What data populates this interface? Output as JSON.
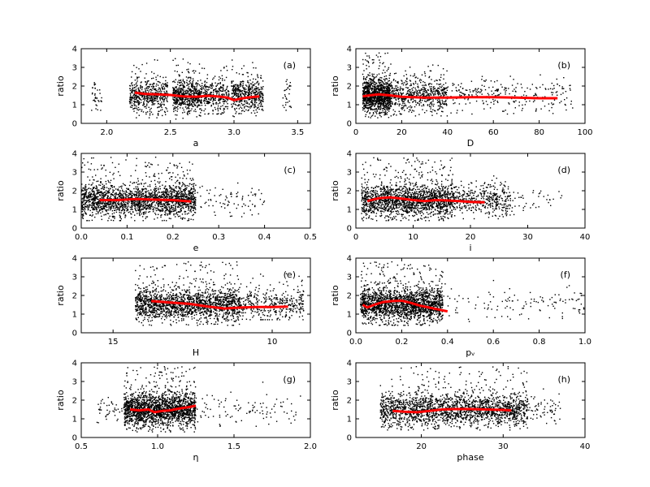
{
  "chart_data": [
    {
      "panel": "(a)",
      "type": "scatter",
      "xlabel": "a",
      "ylabel": "ratio",
      "xlim": [
        1.8,
        3.6
      ],
      "ylim": [
        0,
        4
      ],
      "x_reversed": false,
      "xticks": [
        2.0,
        2.5,
        3.0,
        3.5
      ],
      "xtick_labels": [
        "2.0",
        "2.5",
        "3.0",
        "3.5"
      ],
      "yticks": [
        0,
        1,
        2,
        3,
        4
      ],
      "ytick_labels": [
        "0",
        "1",
        "2",
        "3",
        "4"
      ],
      "clusters": [
        {
          "x": [
            1.88,
            1.96
          ],
          "y": [
            0.7,
            2.6
          ],
          "n": 35
        },
        {
          "x": [
            2.18,
            2.48
          ],
          "y": [
            0.3,
            3.5
          ],
          "n": 500
        },
        {
          "x": [
            2.52,
            2.75
          ],
          "y": [
            0.2,
            3.6
          ],
          "n": 600
        },
        {
          "x": [
            2.76,
            2.96
          ],
          "y": [
            0.5,
            3.2
          ],
          "n": 300
        },
        {
          "x": [
            2.98,
            3.23
          ],
          "y": [
            0.3,
            3.4
          ],
          "n": 450
        },
        {
          "x": [
            3.38,
            3.45
          ],
          "y": [
            0.7,
            2.4
          ],
          "n": 30
        }
      ],
      "trend": {
        "x": [
          2.22,
          2.3,
          2.4,
          2.5,
          2.6,
          2.7,
          2.8,
          2.9,
          2.95,
          3.0,
          3.05,
          3.1,
          3.2
        ],
        "y": [
          1.65,
          1.58,
          1.55,
          1.52,
          1.45,
          1.42,
          1.48,
          1.42,
          1.38,
          1.25,
          1.32,
          1.38,
          1.45
        ]
      }
    },
    {
      "panel": "(b)",
      "type": "scatter",
      "xlabel": "D",
      "ylabel": "ratio",
      "xlim": [
        0,
        100
      ],
      "ylim": [
        0,
        4
      ],
      "x_reversed": false,
      "xticks": [
        0,
        20,
        40,
        60,
        80,
        100
      ],
      "xtick_labels": [
        "0",
        "20",
        "40",
        "60",
        "80",
        "100"
      ],
      "yticks": [
        0,
        1,
        2,
        3,
        4
      ],
      "ytick_labels": [
        "0",
        "1",
        "2",
        "3",
        "4"
      ],
      "clusters": [
        {
          "x": [
            3,
            15
          ],
          "y": [
            0.3,
            3.8
          ],
          "n": 1100
        },
        {
          "x": [
            15,
            40
          ],
          "y": [
            0.4,
            3.2
          ],
          "n": 600
        },
        {
          "x": [
            40,
            95
          ],
          "y": [
            0.5,
            2.6
          ],
          "n": 250
        }
      ],
      "trend": {
        "x": [
          3,
          6,
          10,
          15,
          20,
          30,
          40,
          50,
          60,
          70,
          80,
          88
        ],
        "y": [
          1.45,
          1.5,
          1.55,
          1.5,
          1.42,
          1.38,
          1.38,
          1.4,
          1.4,
          1.38,
          1.35,
          1.35
        ]
      }
    },
    {
      "panel": "(c)",
      "type": "scatter",
      "xlabel": "e",
      "ylabel": "ratio",
      "xlim": [
        0.0,
        0.5
      ],
      "ylim": [
        0,
        4
      ],
      "x_reversed": false,
      "xticks": [
        0.0,
        0.1,
        0.2,
        0.3,
        0.4,
        0.5
      ],
      "xtick_labels": [
        "0.0",
        "0.1",
        "0.2",
        "0.3",
        "0.4",
        "0.5"
      ],
      "yticks": [
        0,
        1,
        2,
        3,
        4
      ],
      "ytick_labels": [
        "0",
        "1",
        "2",
        "3",
        "4"
      ],
      "clusters": [
        {
          "x": [
            0.0,
            0.25
          ],
          "y": [
            0.4,
            3.8
          ],
          "n": 2000
        },
        {
          "x": [
            0.25,
            0.4
          ],
          "y": [
            0.6,
            2.6
          ],
          "n": 80
        }
      ],
      "trend": {
        "x": [
          0.04,
          0.08,
          0.12,
          0.16,
          0.2,
          0.24
        ],
        "y": [
          1.5,
          1.5,
          1.55,
          1.52,
          1.5,
          1.42
        ]
      }
    },
    {
      "panel": "(d)",
      "type": "scatter",
      "xlabel": "i",
      "ylabel": "ratio",
      "xlim": [
        0,
        40
      ],
      "ylim": [
        0,
        4
      ],
      "x_reversed": false,
      "xticks": [
        0,
        10,
        20,
        30,
        40
      ],
      "xtick_labels": [
        "0",
        "10",
        "20",
        "30",
        "40"
      ],
      "yticks": [
        0,
        1,
        2,
        3,
        4
      ],
      "ytick_labels": [
        "0",
        "1",
        "2",
        "3",
        "4"
      ],
      "clusters": [
        {
          "x": [
            1,
            17
          ],
          "y": [
            0.4,
            3.8
          ],
          "n": 1700
        },
        {
          "x": [
            17,
            27
          ],
          "y": [
            0.5,
            3.0
          ],
          "n": 400
        },
        {
          "x": [
            27,
            36
          ],
          "y": [
            0.7,
            2.6
          ],
          "n": 40
        }
      ],
      "trend": {
        "x": [
          2,
          4,
          6,
          8,
          10,
          12,
          14,
          16,
          18,
          20,
          22.5
        ],
        "y": [
          1.45,
          1.6,
          1.65,
          1.58,
          1.5,
          1.45,
          1.5,
          1.48,
          1.45,
          1.4,
          1.38
        ]
      }
    },
    {
      "panel": "(e)",
      "type": "scatter",
      "xlabel": "H",
      "ylabel": "ratio",
      "xlim": [
        16,
        8.8
      ],
      "ylim": [
        0,
        4
      ],
      "x_reversed": true,
      "xticks": [
        15,
        10
      ],
      "xtick_labels": [
        "15",
        "10"
      ],
      "yticks": [
        0,
        1,
        2,
        3,
        4
      ],
      "ytick_labels": [
        "0",
        "1",
        "2",
        "3",
        "4"
      ],
      "clusters": [
        {
          "x": [
            11.0,
            14.3
          ],
          "y": [
            0.4,
            3.8
          ],
          "n": 1700
        },
        {
          "x": [
            9.0,
            11.0
          ],
          "y": [
            0.7,
            3.2
          ],
          "n": 350
        }
      ],
      "trend": {
        "x": [
          13.8,
          13.2,
          12.6,
          12.0,
          11.5,
          11.0,
          10.5,
          10.0,
          9.5
        ],
        "y": [
          1.7,
          1.62,
          1.55,
          1.4,
          1.3,
          1.35,
          1.38,
          1.38,
          1.4
        ]
      }
    },
    {
      "panel": "(f)",
      "type": "scatter",
      "xlabel": "pᵥ",
      "ylabel": "ratio",
      "xlim": [
        0.0,
        1.0
      ],
      "ylim": [
        0,
        4
      ],
      "x_reversed": false,
      "xticks": [
        0.0,
        0.2,
        0.4,
        0.6,
        0.8,
        1.0
      ],
      "xtick_labels": [
        "0.0",
        "0.2",
        "0.4",
        "0.6",
        "0.8",
        "1.0"
      ],
      "yticks": [
        0,
        1,
        2,
        3,
        4
      ],
      "ytick_labels": [
        "0",
        "1",
        "2",
        "3",
        "4"
      ],
      "clusters": [
        {
          "x": [
            0.02,
            0.38
          ],
          "y": [
            0.4,
            3.8
          ],
          "n": 1900
        },
        {
          "x": [
            0.38,
            1.0
          ],
          "y": [
            0.6,
            3.0
          ],
          "n": 120
        }
      ],
      "trend": {
        "x": [
          0.03,
          0.05,
          0.08,
          0.12,
          0.16,
          0.2,
          0.24,
          0.28,
          0.32,
          0.36,
          0.4
        ],
        "y": [
          1.5,
          1.35,
          1.5,
          1.65,
          1.7,
          1.72,
          1.6,
          1.45,
          1.35,
          1.25,
          1.15
        ]
      }
    },
    {
      "panel": "(g)",
      "type": "scatter",
      "xlabel": "η",
      "ylabel": "ratio",
      "xlim": [
        0.5,
        2.0
      ],
      "ylim": [
        0,
        4
      ],
      "x_reversed": false,
      "xticks": [
        0.5,
        1.0,
        1.5,
        2.0
      ],
      "xtick_labels": [
        "0.5",
        "1.0",
        "1.5",
        "2.0"
      ],
      "yticks": [
        0,
        1,
        2,
        3,
        4
      ],
      "ytick_labels": [
        "0",
        "1",
        "2",
        "3",
        "4"
      ],
      "clusters": [
        {
          "x": [
            0.78,
            1.25
          ],
          "y": [
            0.3,
            3.8
          ],
          "n": 1900
        },
        {
          "x": [
            0.6,
            0.8
          ],
          "y": [
            0.6,
            2.4
          ],
          "n": 50
        },
        {
          "x": [
            1.25,
            1.95
          ],
          "y": [
            0.6,
            3.0
          ],
          "n": 100
        }
      ],
      "trend": {
        "x": [
          0.82,
          0.88,
          0.94,
          0.98,
          1.03,
          1.08,
          1.14,
          1.2,
          1.25
        ],
        "y": [
          1.5,
          1.45,
          1.5,
          1.35,
          1.42,
          1.45,
          1.55,
          1.62,
          1.7
        ]
      }
    },
    {
      "panel": "(h)",
      "type": "scatter",
      "xlabel": "phase",
      "ylabel": "ratio",
      "xlim": [
        12,
        40
      ],
      "ylim": [
        0,
        4
      ],
      "x_reversed": false,
      "xticks": [
        20,
        30,
        40
      ],
      "xtick_labels": [
        "20",
        "30",
        "40"
      ],
      "yticks": [
        0,
        1,
        2,
        3,
        4
      ],
      "ytick_labels": [
        "0",
        "1",
        "2",
        "3",
        "4"
      ],
      "clusters": [
        {
          "x": [
            15,
            33
          ],
          "y": [
            0.4,
            3.8
          ],
          "n": 2000
        },
        {
          "x": [
            33,
            37
          ],
          "y": [
            0.7,
            2.6
          ],
          "n": 60
        }
      ],
      "trend": {
        "x": [
          16.5,
          18,
          19.5,
          21,
          22.5,
          24,
          26,
          28,
          30,
          31
        ],
        "y": [
          1.42,
          1.38,
          1.35,
          1.42,
          1.5,
          1.52,
          1.52,
          1.5,
          1.48,
          1.45
        ]
      }
    }
  ],
  "colors": {
    "points": "#000000",
    "trend": "#ff0000",
    "axes": "#000000",
    "background": "#ffffff"
  }
}
